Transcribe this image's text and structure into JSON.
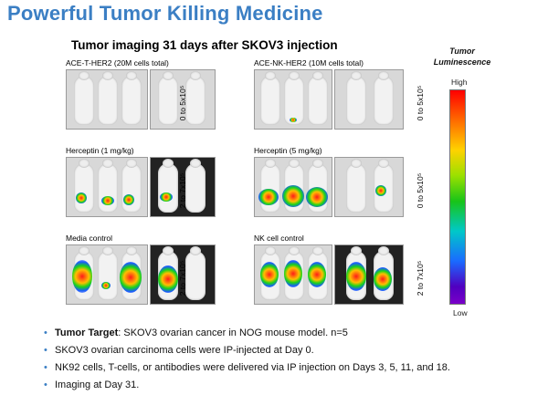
{
  "slide": {
    "title": "Powerful Tumor Killing Medicine",
    "subtitle": "Tumor imaging 31 days after SKOV3 injection"
  },
  "legend": {
    "title": "Tumor Luminescence",
    "high": "High",
    "low": "Low",
    "colors": [
      "#ff0000",
      "#ff6a00",
      "#ffd200",
      "#9be000",
      "#18c418",
      "#00c8c8",
      "#1a6bff",
      "#5000c0",
      "#7a00c8"
    ]
  },
  "panels": [
    {
      "label": "ACE-T-HER2 (20M cells total)",
      "scale": "0 to 5x10⁵"
    },
    {
      "label": "ACE-NK-HER2 (10M cells total)",
      "scale": "0 to 5x10⁵"
    },
    {
      "label": "Herceptin (1 mg/kg)",
      "scale": "2 to 7x10⁵"
    },
    {
      "label": "Herceptin (5 mg/kg)",
      "scale": "0 to 5x10⁵"
    },
    {
      "label": "Media control",
      "scale": "2 to 7x10⁵"
    },
    {
      "label": "NK cell control",
      "scale": "2 to 7x10⁵"
    }
  ],
  "bullets": [
    {
      "bold": "Tumor Target",
      "text": ": SKOV3 ovarian cancer in NOG mouse model. n=5"
    },
    {
      "bold": "",
      "text": "SKOV3 ovarian carcinoma cells were IP-injected at Day 0."
    },
    {
      "bold": "",
      "text": "NK92 cells, T-cells, or antibodies were delivered via IP injection on Days 3, 5, 11, and 18."
    },
    {
      "bold": "",
      "text": "Imaging at Day 31."
    }
  ]
}
